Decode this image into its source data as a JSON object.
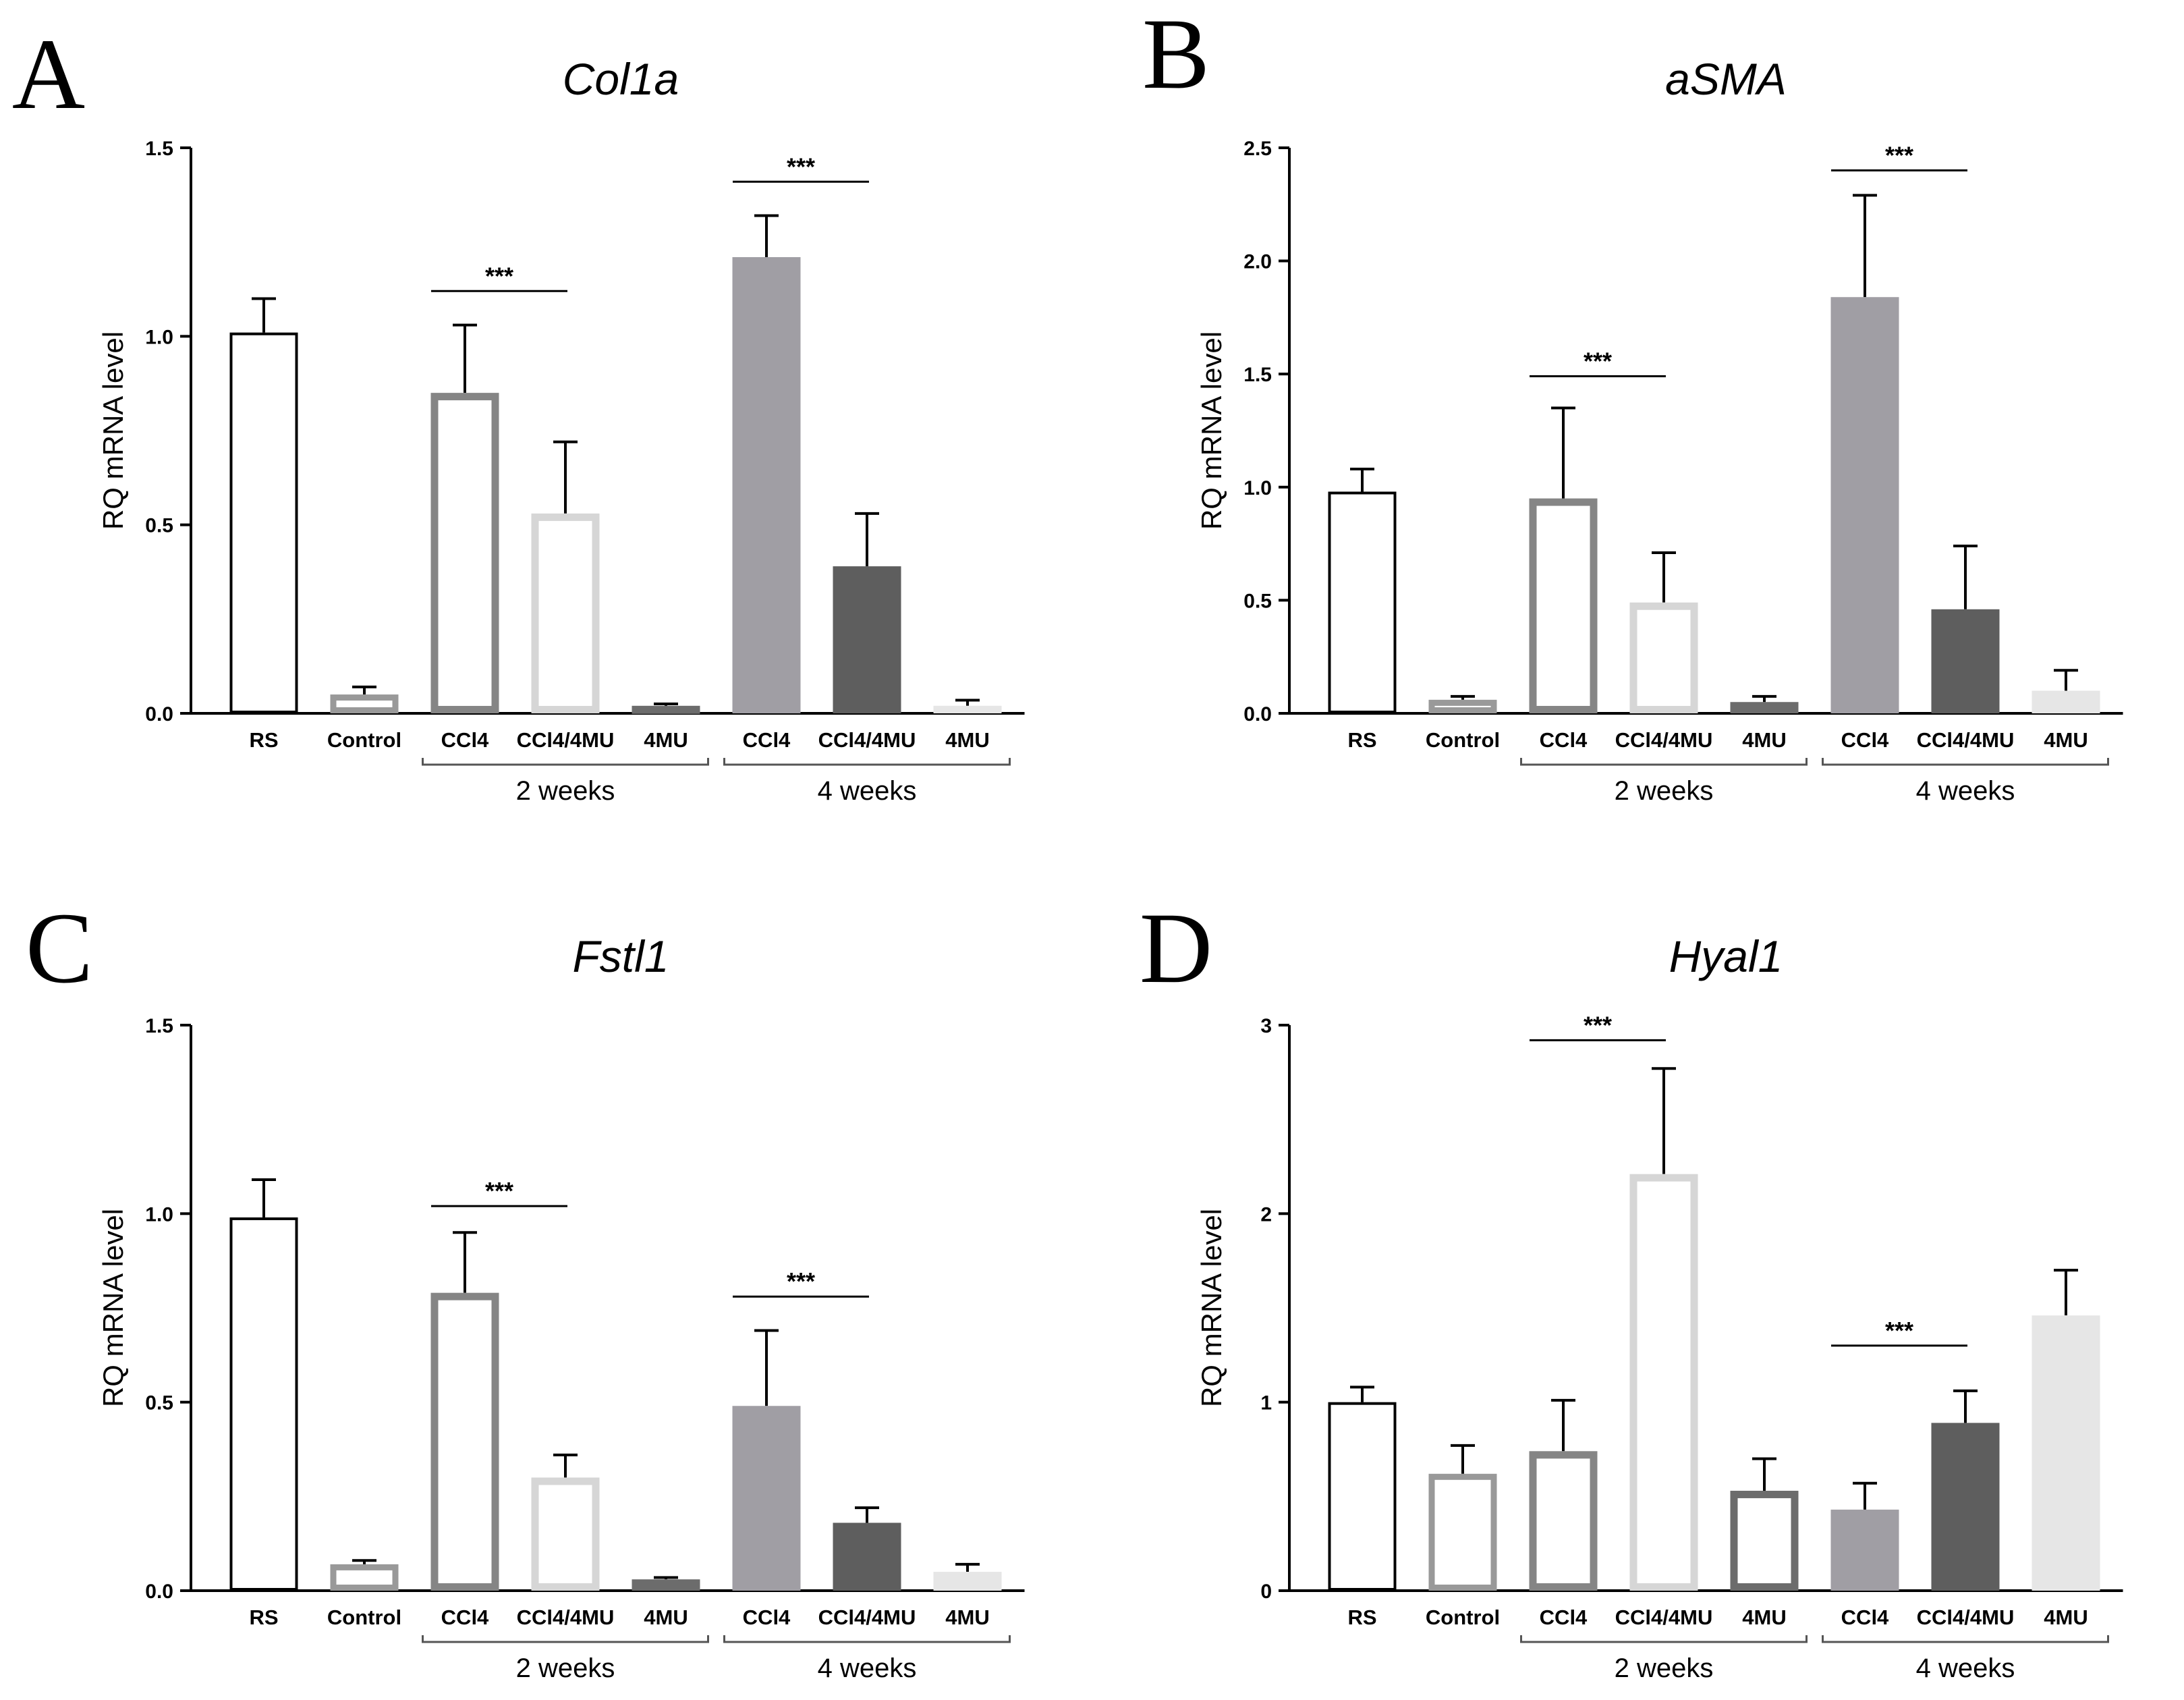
{
  "chart_data": [
    {
      "type": "bar",
      "panel": "A",
      "title": "Col1a",
      "ylabel": "RQ mRNA level",
      "xlabel": "",
      "ylim": [
        0,
        1.5
      ],
      "yticks": [
        "0.0",
        "0.5",
        "1.0",
        "1.5"
      ],
      "categories": [
        "RS",
        "Control",
        "CCl4",
        "CCl4/4MU",
        "4MU",
        "CCl4",
        "CCl4/4MU",
        "4MU"
      ],
      "values": [
        1.01,
        0.05,
        0.85,
        0.53,
        0.02,
        1.21,
        0.39,
        0.02
      ],
      "errors": [
        0.09,
        0.02,
        0.18,
        0.19,
        0.005,
        0.11,
        0.14,
        0.015
      ],
      "groups": [
        {
          "label": "2 weeks",
          "start": 2,
          "end": 4
        },
        {
          "label": "4 weeks",
          "start": 5,
          "end": 7
        }
      ],
      "significance": [
        {
          "from": 2,
          "to": 3,
          "label": "***",
          "y": 1.12
        },
        {
          "from": 5,
          "to": 6,
          "label": "***",
          "y": 1.41
        }
      ],
      "grid": false
    },
    {
      "type": "bar",
      "panel": "B",
      "title": "aSMA",
      "ylabel": "RQ mRNA level",
      "xlabel": "",
      "ylim": [
        0,
        2.5
      ],
      "yticks": [
        "0.0",
        "0.5",
        "1.0",
        "1.5",
        "2.0",
        "2.5"
      ],
      "categories": [
        "RS",
        "Control",
        "CCl4",
        "CCl4/4MU",
        "4MU",
        "CCl4",
        "CCl4/4MU",
        "4MU"
      ],
      "values": [
        0.98,
        0.06,
        0.95,
        0.49,
        0.05,
        1.84,
        0.46,
        0.1
      ],
      "errors": [
        0.1,
        0.015,
        0.4,
        0.22,
        0.025,
        0.45,
        0.28,
        0.09
      ],
      "groups": [
        {
          "label": "2 weeks",
          "start": 2,
          "end": 4
        },
        {
          "label": "4 weeks",
          "start": 5,
          "end": 7
        }
      ],
      "significance": [
        {
          "from": 2,
          "to": 3,
          "label": "***",
          "y": 1.49
        },
        {
          "from": 5,
          "to": 6,
          "label": "***",
          "y": 2.4
        }
      ],
      "grid": false
    },
    {
      "type": "bar",
      "panel": "C",
      "title": "Fstl1",
      "ylabel": "RQ mRNA level",
      "xlabel": "",
      "ylim": [
        0,
        1.5
      ],
      "yticks": [
        "0.0",
        "0.5",
        "1.0",
        "1.5"
      ],
      "categories": [
        "RS",
        "Control",
        "CCl4",
        "CCl4/4MU",
        "4MU",
        "CCl4",
        "CCl4/4MU",
        "4MU"
      ],
      "values": [
        0.99,
        0.07,
        0.79,
        0.3,
        0.03,
        0.49,
        0.18,
        0.05
      ],
      "errors": [
        0.1,
        0.01,
        0.16,
        0.06,
        0.005,
        0.2,
        0.04,
        0.02
      ],
      "groups": [
        {
          "label": "2 weeks",
          "start": 2,
          "end": 4
        },
        {
          "label": "4 weeks",
          "start": 5,
          "end": 7
        }
      ],
      "significance": [
        {
          "from": 2,
          "to": 3,
          "label": "***",
          "y": 1.02
        },
        {
          "from": 5,
          "to": 6,
          "label": "***",
          "y": 0.78
        }
      ],
      "grid": false
    },
    {
      "type": "bar",
      "panel": "D",
      "title": "Hyal1",
      "ylabel": "RQ mRNA level",
      "xlabel": "",
      "ylim": [
        0,
        3
      ],
      "yticks": [
        "0",
        "1",
        "2",
        "3"
      ],
      "categories": [
        "RS",
        "Control",
        "CCl4",
        "CCl4/4MU",
        "4MU",
        "CCl4",
        "CCl4/4MU",
        "4MU"
      ],
      "values": [
        1.0,
        0.62,
        0.74,
        2.21,
        0.53,
        0.43,
        0.89,
        1.46
      ],
      "errors": [
        0.08,
        0.15,
        0.27,
        0.56,
        0.17,
        0.14,
        0.17,
        0.24
      ],
      "groups": [
        {
          "label": "2 weeks",
          "start": 2,
          "end": 4
        },
        {
          "label": "4 weeks",
          "start": 5,
          "end": 7
        }
      ],
      "significance": [
        {
          "from": 2,
          "to": 3,
          "label": "***",
          "y": 2.92
        },
        {
          "from": 5,
          "to": 6,
          "label": "***",
          "y": 1.3
        }
      ],
      "grid": false
    }
  ],
  "bar_styles": [
    {
      "fill": "#ffffff",
      "stroke": "#000000",
      "stroke_width": 4
    },
    {
      "fill": "#ffffff",
      "stroke": "#999999",
      "stroke_width": 9
    },
    {
      "fill": "#ffffff",
      "stroke": "#858585",
      "stroke_width": 11
    },
    {
      "fill": "#ffffff",
      "stroke": "#d6d6d6",
      "stroke_width": 11
    },
    {
      "fill": "#ffffff",
      "stroke": "#6c6c6c",
      "stroke_width": 11
    },
    {
      "fill": "#a09ea4",
      "stroke": "#a09ea4",
      "stroke_width": 0
    },
    {
      "fill": "#5e5e5e",
      "stroke": "#5e5e5e",
      "stroke_width": 0
    },
    {
      "fill": "#e6e6e6",
      "stroke": "#e6e6e6",
      "stroke_width": 0
    }
  ]
}
